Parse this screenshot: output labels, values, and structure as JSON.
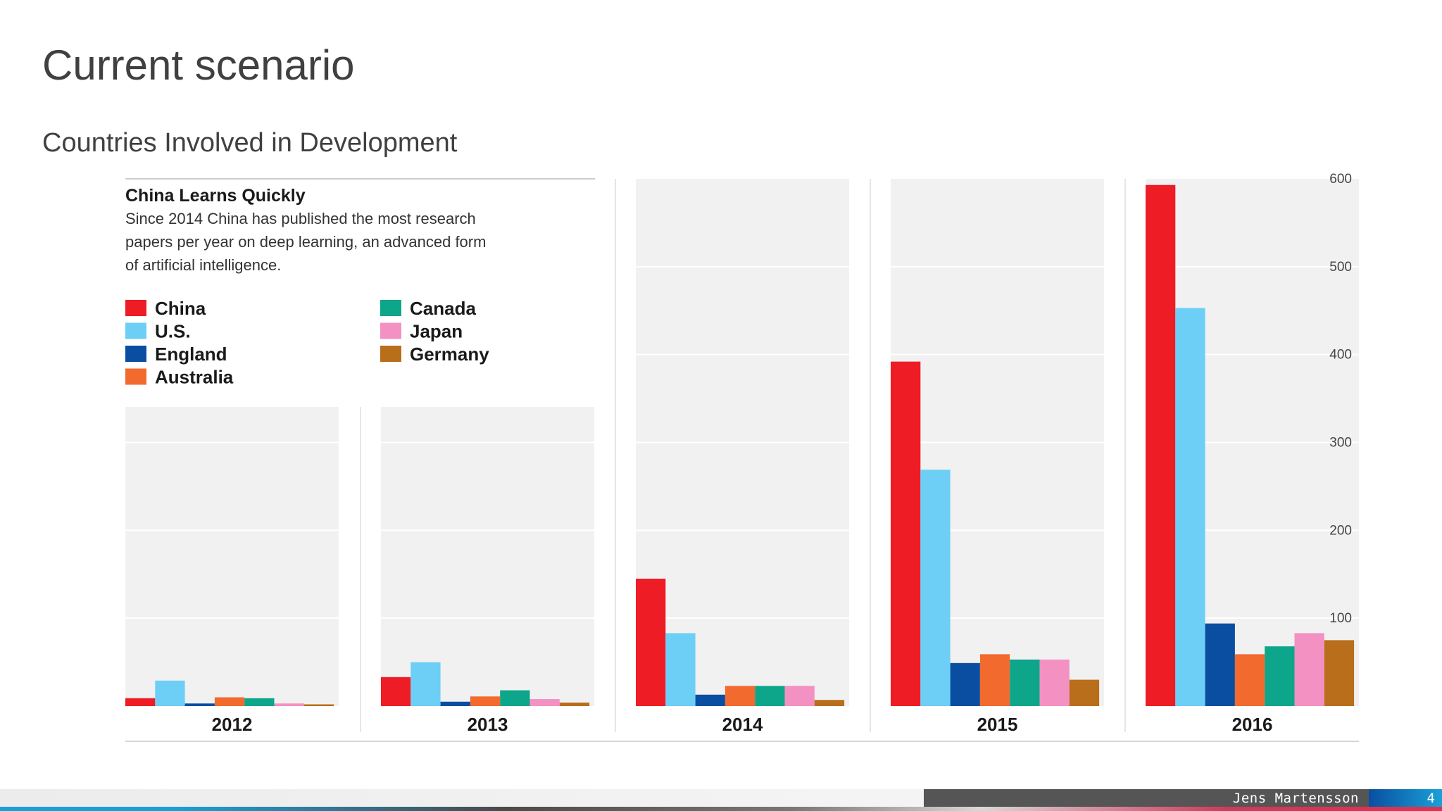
{
  "slide": {
    "title": "Current scenario",
    "subtitle": "Countries Involved in Development"
  },
  "footer": {
    "author": "Jens Martensson",
    "page": "4"
  },
  "chart_data": {
    "type": "bar",
    "title": "China Learns Quickly",
    "description_lines": [
      "Since 2014 China has published the most research",
      "papers per year on deep learning, an advanced form",
      "of artificial intelligence."
    ],
    "categories": [
      "2012",
      "2013",
      "2014",
      "2015",
      "2016"
    ],
    "ylim": [
      0,
      600
    ],
    "yticks": [
      100,
      200,
      300,
      400,
      500,
      600
    ],
    "series": [
      {
        "name": "China",
        "color": "#ee1c25",
        "values": [
          9,
          33,
          145,
          392,
          593
        ]
      },
      {
        "name": "U.S.",
        "color": "#6dcff6",
        "values": [
          29,
          50,
          83,
          269,
          453
        ]
      },
      {
        "name": "England",
        "color": "#0a4ea2",
        "values": [
          3,
          5,
          13,
          49,
          94
        ]
      },
      {
        "name": "Australia",
        "color": "#f26a2e",
        "values": [
          10,
          11,
          23,
          59,
          59
        ]
      },
      {
        "name": "Canada",
        "color": "#0da68a",
        "values": [
          9,
          18,
          23,
          53,
          68
        ]
      },
      {
        "name": "Japan",
        "color": "#f391c3",
        "values": [
          3,
          8,
          23,
          53,
          83
        ]
      },
      {
        "name": "Germany",
        "color": "#b86e1a",
        "values": [
          2,
          4,
          7,
          30,
          75
        ]
      }
    ]
  }
}
